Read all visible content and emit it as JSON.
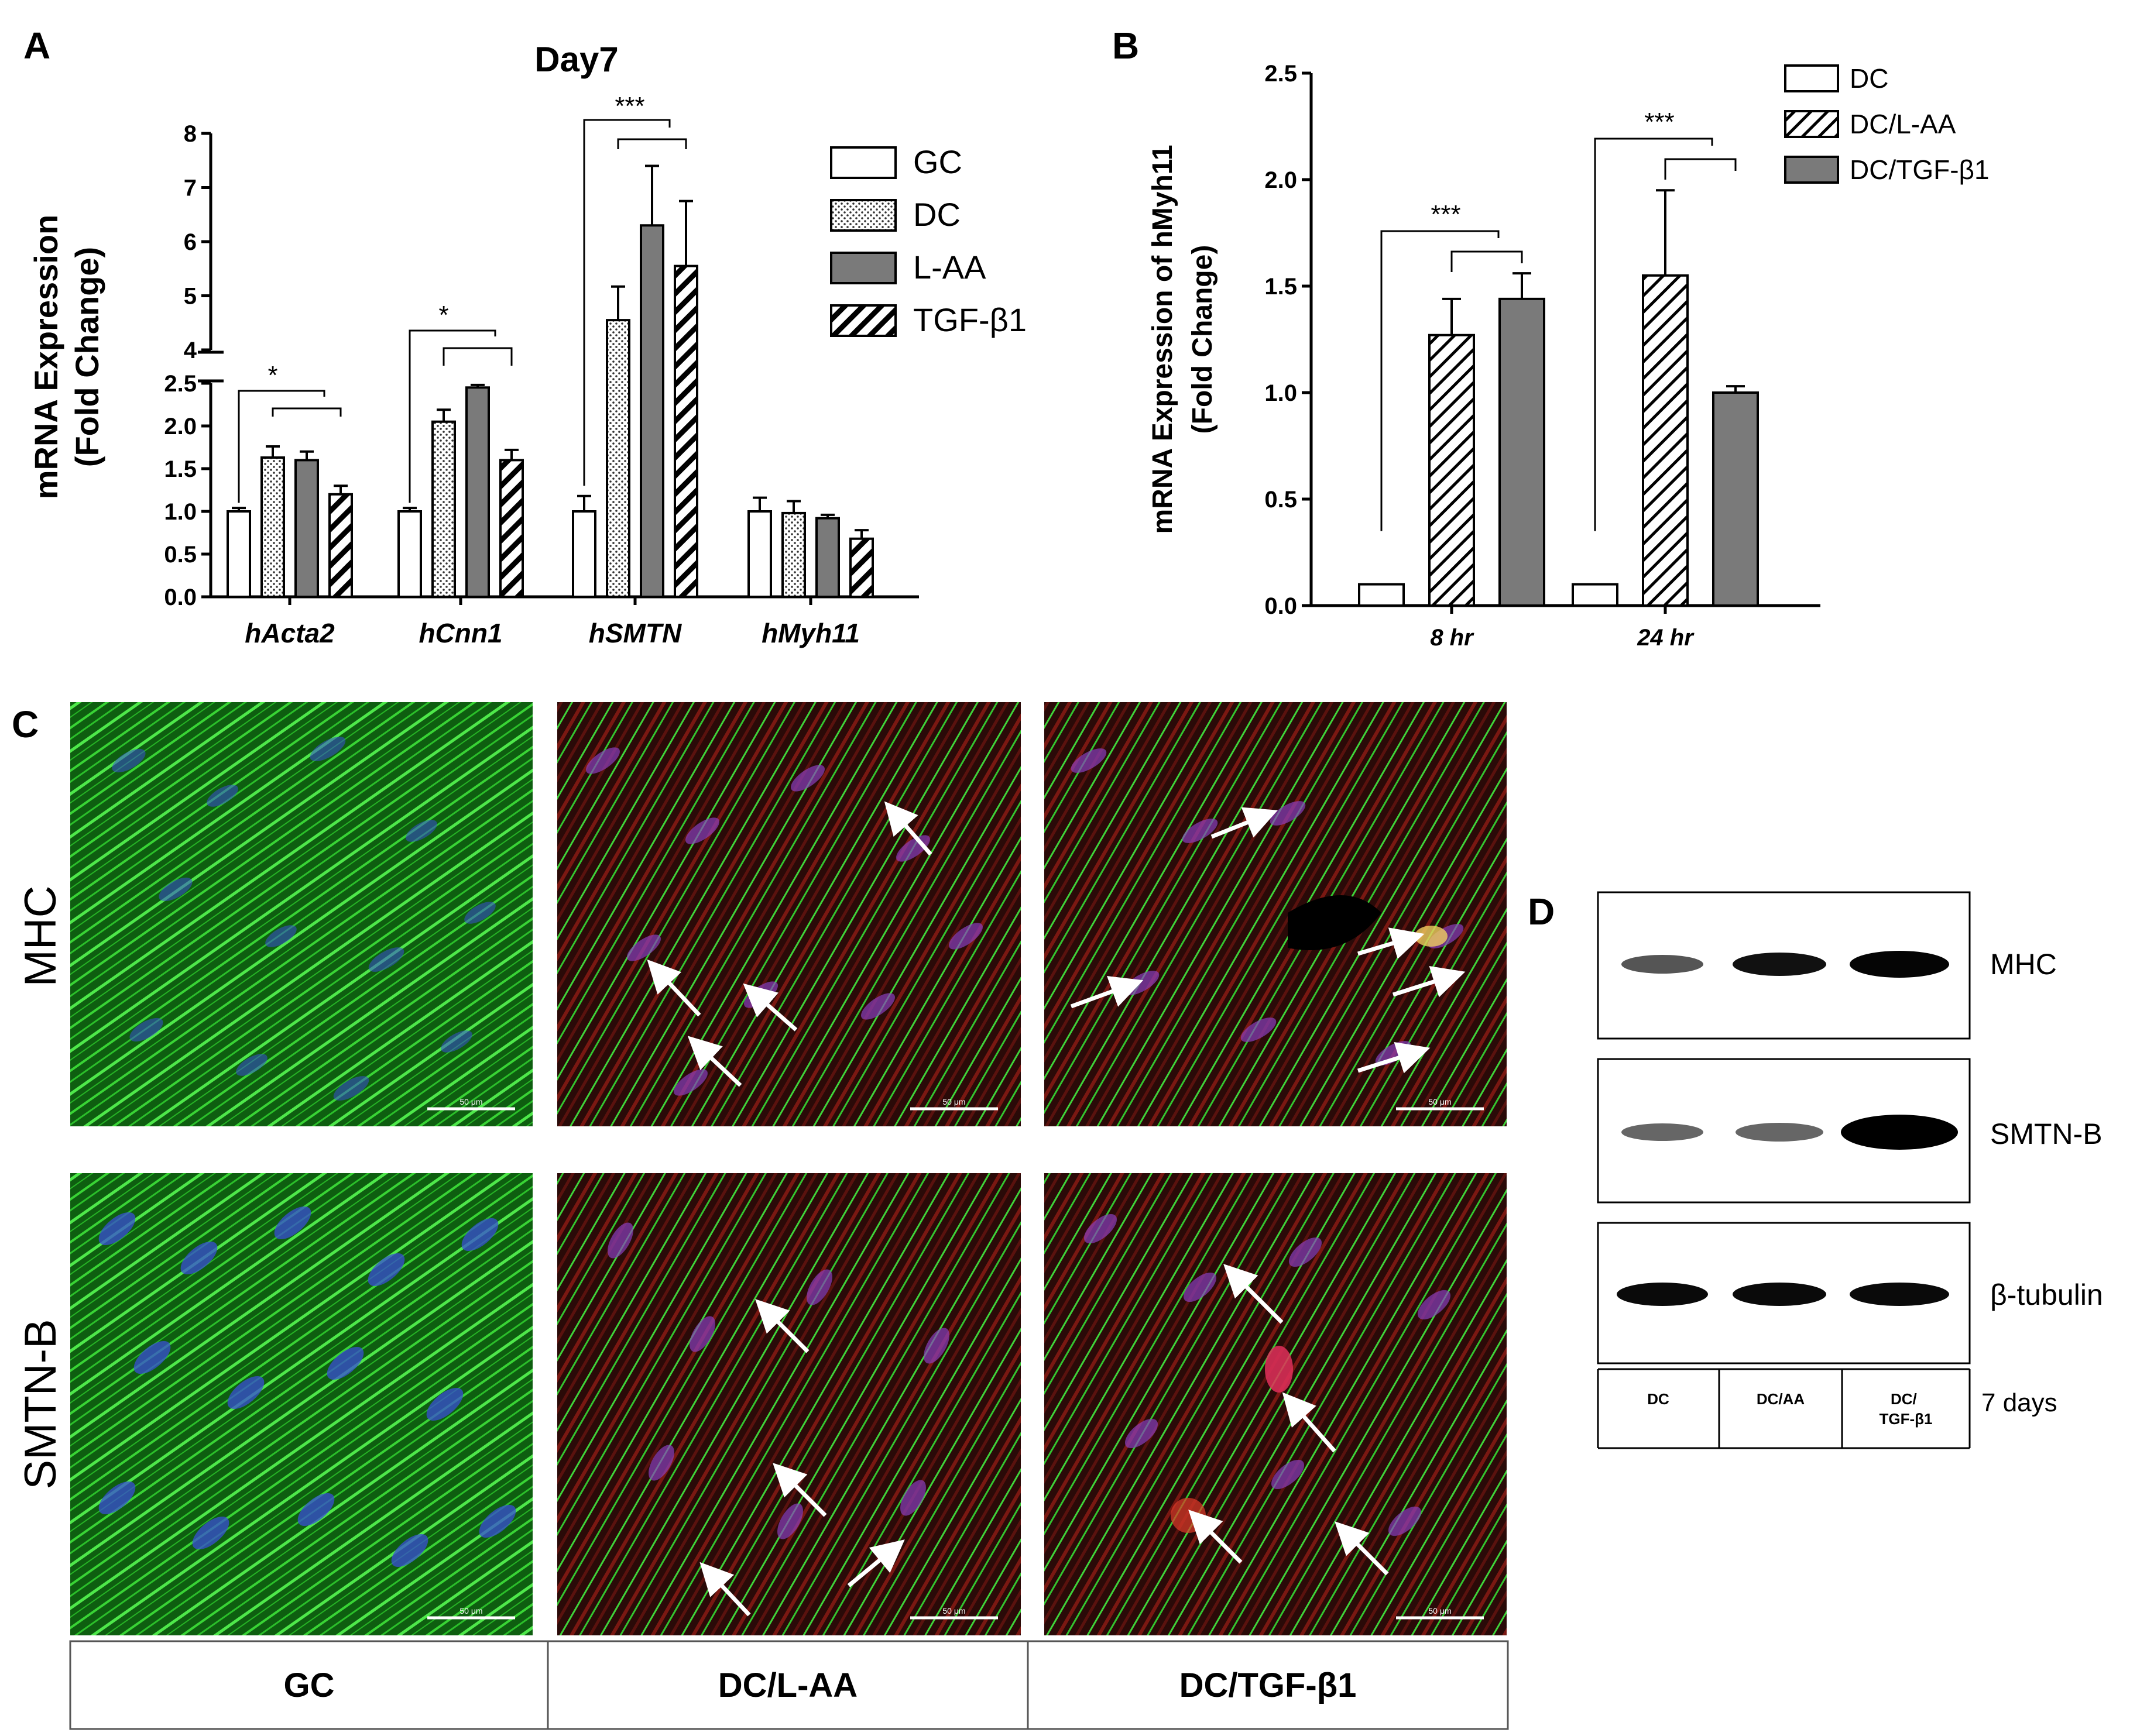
{
  "panels": {
    "A": {
      "letter": "A",
      "chart_data": {
        "type": "bar",
        "title": "Day7",
        "ylabel_line1": "mRNA Expression",
        "ylabel_line2": "(Fold Change)",
        "categories": [
          "hActa2",
          "hCnn1",
          "hSMTN",
          "hMyh11"
        ],
        "series": [
          {
            "name": "GC",
            "values": [
              1.0,
              1.0,
              1.0,
              1.0
            ],
            "errors": [
              0.04,
              0.04,
              0.18,
              0.16
            ]
          },
          {
            "name": "DC",
            "values": [
              1.63,
              2.05,
              4.55,
              0.98
            ],
            "errors": [
              0.13,
              0.14,
              0.62,
              0.14
            ]
          },
          {
            "name": "L-AA",
            "values": [
              1.6,
              2.45,
              6.3,
              0.92
            ],
            "errors": [
              0.1,
              0.03,
              1.1,
              0.04
            ]
          },
          {
            "name": "TGF-β1",
            "values": [
              1.2,
              1.6,
              5.55,
              0.68
            ],
            "errors": [
              0.1,
              0.12,
              1.2,
              0.1
            ]
          }
        ],
        "y_axis_break": {
          "lower_range": [
            0,
            2.5
          ],
          "upper_range": [
            4,
            8
          ]
        },
        "yticks_lower": [
          "0.0",
          "0.5",
          "1.0",
          "1.5",
          "2.0",
          "2.5"
        ],
        "yticks_upper": [
          "4",
          "5",
          "6",
          "7",
          "8"
        ],
        "significance": [
          "*",
          "*",
          "***"
        ],
        "legend_position": "top-right"
      }
    },
    "B": {
      "letter": "B",
      "chart_data": {
        "type": "bar",
        "ylabel_line1": "mRNA Expression of hMyh11",
        "ylabel_line2": "(Fold Change)",
        "categories": [
          "8 hr",
          "24 hr"
        ],
        "series": [
          {
            "name": "DC",
            "values": [
              0.1,
              0.1
            ],
            "errors": [
              0,
              0
            ]
          },
          {
            "name": "DC/L-AA",
            "values": [
              1.27,
              1.55
            ],
            "errors": [
              0.17,
              0.4
            ]
          },
          {
            "name": "DC/TGF-β1",
            "values": [
              1.44,
              1.0
            ],
            "errors": [
              0.12,
              0.03
            ]
          }
        ],
        "ylim": [
          0,
          2.5
        ],
        "yticks": [
          "0.0",
          "0.5",
          "1.0",
          "1.5",
          "2.0",
          "2.5"
        ],
        "significance": [
          "***",
          "***"
        ],
        "legend_position": "top-right"
      }
    },
    "C": {
      "letter": "C",
      "rows": [
        "MHC",
        "SMTN-B"
      ],
      "columns": [
        "GC",
        "DC/L-AA",
        "DC/TGF-β1"
      ],
      "scale_label": "50 μm"
    },
    "D": {
      "letter": "D",
      "blots": [
        "MHC",
        "SMTN-B",
        "β-tubulin"
      ],
      "lanes": [
        "DC",
        "DC/AA",
        "DC/ TGF-β1"
      ],
      "time_label": "7 days"
    }
  },
  "colors": {
    "green_channel": "#22c41f",
    "blue_channel": "#3a4fd6",
    "red_channel": "#e02020",
    "bar_gray": "#7a7a7a"
  }
}
